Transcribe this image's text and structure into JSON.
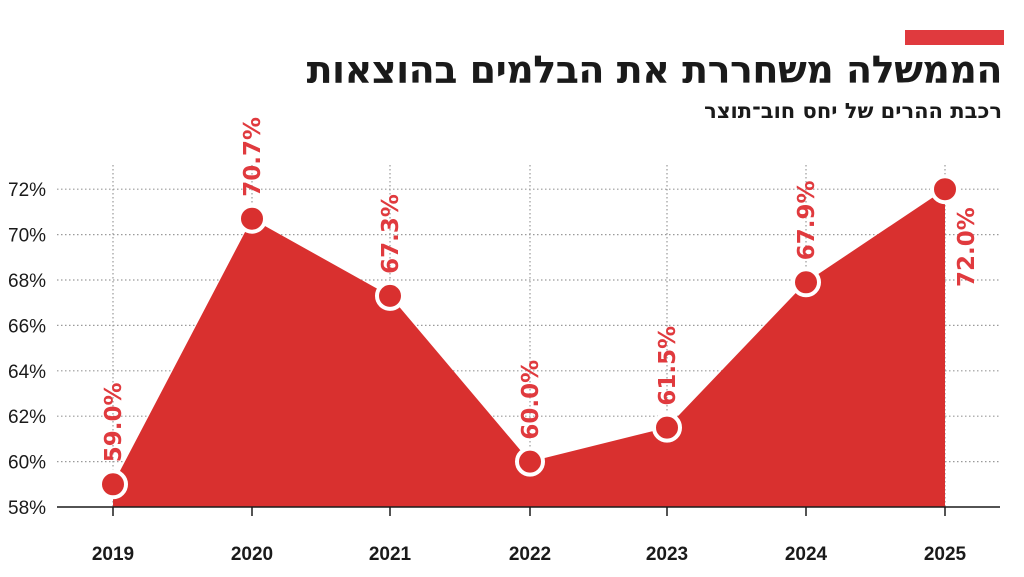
{
  "header": {
    "title": "הממשלה משחררת את הבלמים בהוצאות",
    "subtitle": "רכבת ההרים של יחס חוב־תוצר"
  },
  "colors": {
    "accent": "#e03a3e",
    "area": "#d9302f",
    "grid": "#9a9a9a",
    "text": "#1a1a1a"
  },
  "chart_data": {
    "type": "area",
    "x": [
      "2019",
      "2020",
      "2021",
      "2022",
      "2023",
      "2024",
      "2025"
    ],
    "values": [
      59.0,
      70.7,
      67.3,
      60.0,
      61.5,
      67.9,
      72.0
    ],
    "data_labels": [
      "59.0%",
      "70.7%",
      "67.3%",
      "60.0%",
      "61.5%",
      "67.9%",
      "72.0%"
    ],
    "y_ticks": [
      58,
      60,
      62,
      64,
      66,
      68,
      70,
      72
    ],
    "y_tick_labels": [
      "58%",
      "60%",
      "62%",
      "64%",
      "66%",
      "68%",
      "70%",
      "72%"
    ],
    "ylim": [
      58,
      72
    ],
    "grid": true
  }
}
